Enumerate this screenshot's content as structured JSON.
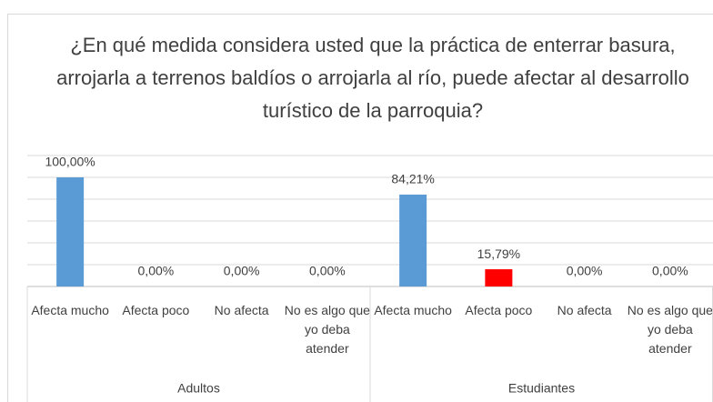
{
  "chart_data": {
    "type": "bar",
    "title": "¿En qué medida considera usted que la práctica de enterrar basura, arrojarla a terrenos baldíos o arrojarla al río, puede afectar al desarrollo turístico de la parroquia?",
    "groups": [
      {
        "name": "Adultos",
        "categories": [
          "Afecta mucho",
          "Afecta poco",
          "No afecta",
          "No es algo que yo deba atender"
        ],
        "values": [
          100,
          0,
          0,
          0
        ],
        "value_labels": [
          "100,00%",
          "0,00%",
          "0,00%",
          "0,00%"
        ],
        "colors": [
          "#5b9bd5",
          "#5b9bd5",
          "#5b9bd5",
          "#5b9bd5"
        ]
      },
      {
        "name": "Estudiantes",
        "categories": [
          "Afecta mucho",
          "Afecta poco",
          "No afecta",
          "No es algo que yo deba atender"
        ],
        "values": [
          84.21,
          15.79,
          0,
          0
        ],
        "value_labels": [
          "84,21%",
          "15,79%",
          "0,00%",
          "0,00%"
        ],
        "colors": [
          "#5b9bd5",
          "#ff0000",
          "#5b9bd5",
          "#5b9bd5"
        ]
      }
    ],
    "ylim": [
      0,
      120
    ],
    "yticks": [
      0,
      20,
      40,
      60,
      80,
      100,
      120
    ],
    "grid": true
  }
}
